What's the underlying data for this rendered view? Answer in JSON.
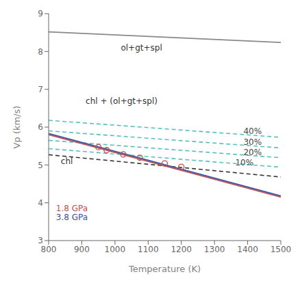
{
  "chart_data": {
    "type": "line",
    "xlabel": "Temperature (K)",
    "ylabel": "Vp (km/s)",
    "xlim": [
      800,
      1500
    ],
    "ylim": [
      3.0,
      9.0
    ],
    "xticks": [
      800,
      900,
      1000,
      1100,
      1200,
      1300,
      1400,
      1500
    ],
    "yticks": [
      3,
      4,
      5,
      6,
      7,
      8,
      9
    ],
    "grid": false,
    "series": [
      {
        "type": "line",
        "color": "#888888",
        "line_style": "solid",
        "x": [
          800,
          1500
        ],
        "values": [
          8.52,
          8.24
        ]
      },
      {
        "type": "line",
        "color": "#55bfbf",
        "line_style": "dashed",
        "x": [
          800,
          1500
        ],
        "values": [
          5.43,
          4.94
        ]
      },
      {
        "type": "line",
        "color": "#55bfbf",
        "line_style": "dashed",
        "x": [
          800,
          1500
        ],
        "values": [
          5.65,
          5.19
        ]
      },
      {
        "type": "line",
        "color": "#55bfbf",
        "line_style": "dashed",
        "x": [
          800,
          1500
        ],
        "values": [
          5.9,
          5.45
        ]
      },
      {
        "type": "line",
        "color": "#55bfbf",
        "line_style": "dashed",
        "x": [
          800,
          1500
        ],
        "values": [
          6.18,
          5.73
        ]
      },
      {
        "type": "line",
        "color": "#333333",
        "line_style": "dashed",
        "x": [
          800,
          1500
        ],
        "values": [
          5.27,
          4.68
        ]
      },
      {
        "type": "line",
        "color": "#c0504d",
        "line_style": "solid",
        "x": [
          800,
          1500
        ],
        "values": [
          5.8,
          4.15
        ]
      },
      {
        "type": "line",
        "color": "#3b4fa0",
        "line_style": "solid",
        "x": [
          800,
          1500
        ],
        "values": [
          5.83,
          4.18
        ]
      },
      {
        "type": "scatter",
        "marker": "circle",
        "color": "#c0504d",
        "x": [
          950,
          975,
          1025,
          1075,
          1150,
          1200
        ],
        "values": [
          5.47,
          5.39,
          5.28,
          5.19,
          5.04,
          4.95
        ]
      }
    ],
    "annotations": [
      {
        "text": "ol+gt+spl",
        "x": 1080,
        "y": 8.1,
        "color": "#333333"
      },
      {
        "text": "chl + (ol+gt+spl)",
        "x": 1020,
        "y": 6.68,
        "color": "#333333"
      },
      {
        "text": "chl",
        "x": 855,
        "y": 5.1,
        "color": "#333333"
      },
      {
        "text": "1.8 GPa",
        "x": 870,
        "y": 3.85,
        "color": "#c0504d"
      },
      {
        "text": "3.8 GPa",
        "x": 870,
        "y": 3.62,
        "color": "#3b4fa0"
      },
      {
        "text": "40%",
        "x": 1415,
        "y": 5.89,
        "color": "#444444"
      },
      {
        "text": "30%",
        "x": 1415,
        "y": 5.6,
        "color": "#444444"
      },
      {
        "text": "20%",
        "x": 1415,
        "y": 5.33,
        "color": "#444444"
      },
      {
        "text": "10%",
        "x": 1390,
        "y": 5.06,
        "color": "#444444"
      }
    ]
  }
}
